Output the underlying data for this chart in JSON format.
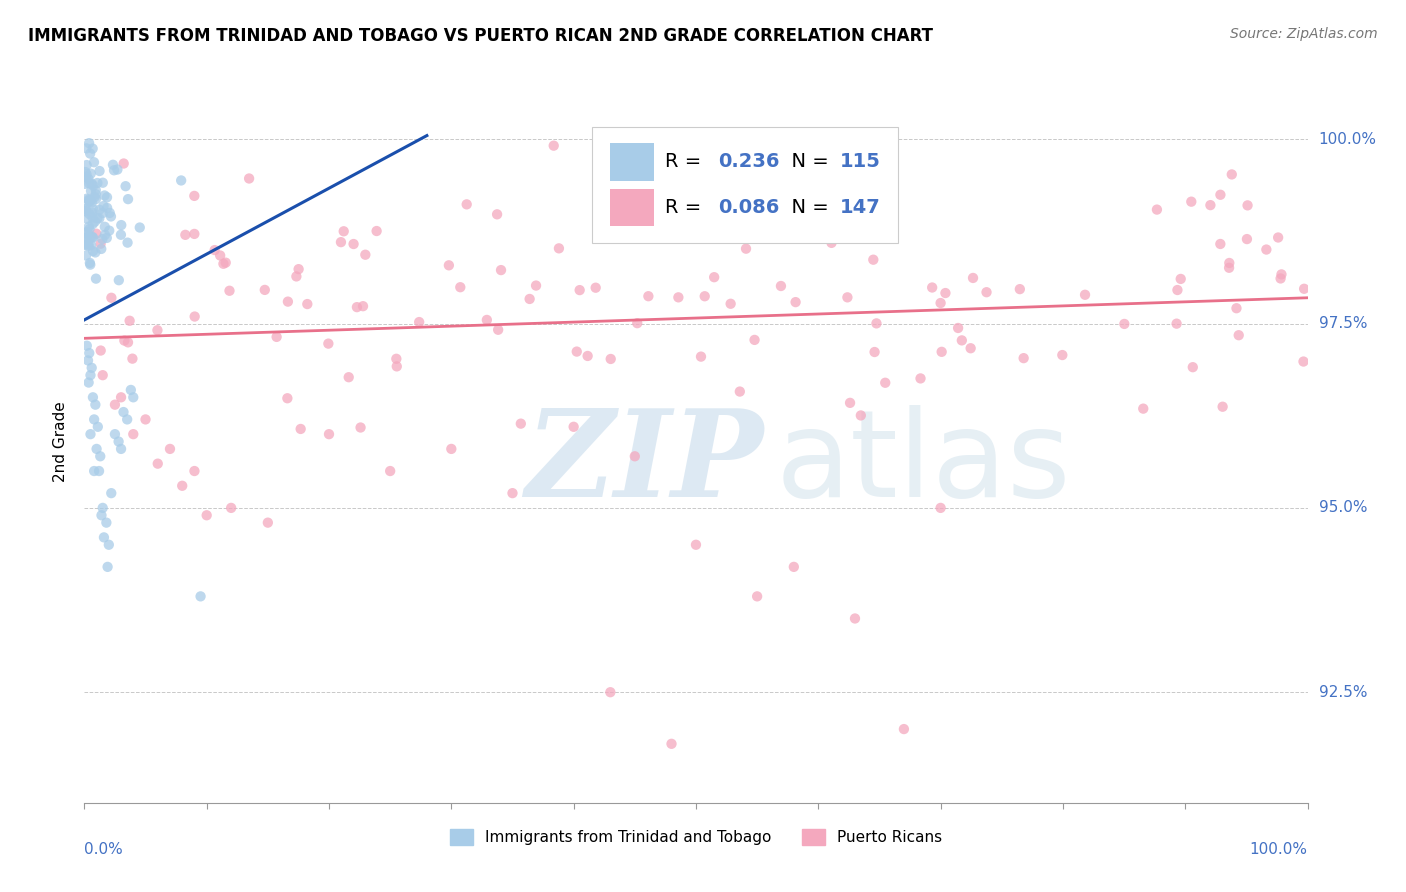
{
  "title": "IMMIGRANTS FROM TRINIDAD AND TOBAGO VS PUERTO RICAN 2ND GRADE CORRELATION CHART",
  "source": "Source: ZipAtlas.com",
  "ylabel": "2nd Grade",
  "legend_blue_r": "0.236",
  "legend_blue_n": "115",
  "legend_pink_r": "0.086",
  "legend_pink_n": "147",
  "legend_blue_label": "Immigrants from Trinidad and Tobago",
  "legend_pink_label": "Puerto Ricans",
  "blue_scatter_color": "#a8cce8",
  "pink_scatter_color": "#f4a8be",
  "blue_line_color": "#1a4fac",
  "pink_line_color": "#e8708a",
  "label_color": "#4472c4",
  "watermark_zip_color": "#bdd5ea",
  "watermark_atlas_color": "#c8dce8",
  "xmin": 0.0,
  "xmax": 100.0,
  "ymin": 91.0,
  "ymax": 100.8,
  "yticks": [
    92.5,
    95.0,
    97.5,
    100.0
  ],
  "background_color": "#ffffff",
  "blue_line_x0": 0.0,
  "blue_line_y0": 97.55,
  "blue_line_x1": 28.0,
  "blue_line_y1": 100.05,
  "pink_line_x0": 0.0,
  "pink_line_y0": 97.3,
  "pink_line_x1": 100.0,
  "pink_line_y1": 97.85
}
